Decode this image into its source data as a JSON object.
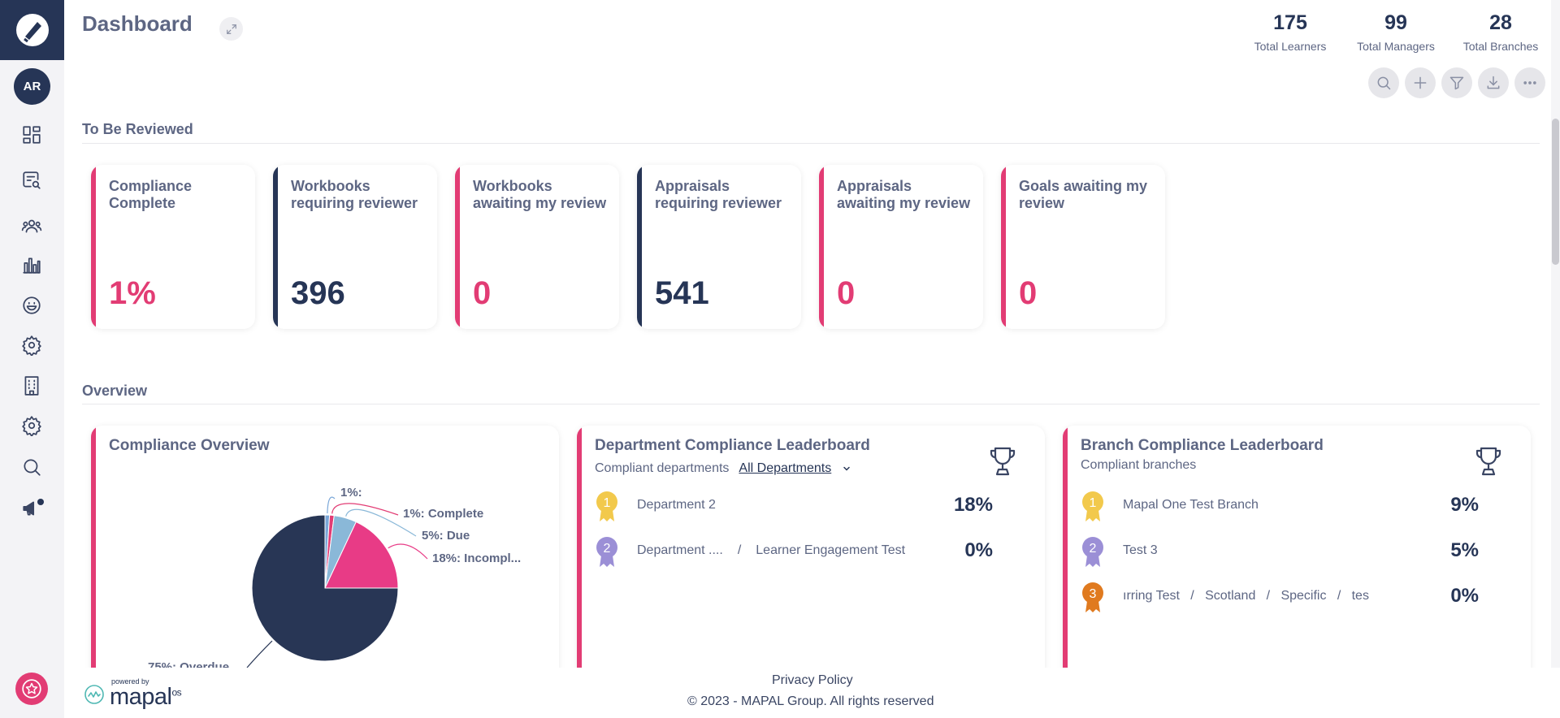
{
  "header": {
    "title": "Dashboard",
    "stats": [
      {
        "value": "175",
        "label": "Total Learners"
      },
      {
        "value": "99",
        "label": "Total Managers"
      },
      {
        "value": "28",
        "label": "Total Branches"
      }
    ]
  },
  "sidebar": {
    "avatar_initials": "AR",
    "items": [
      "dashboard-icon",
      "search-document-icon",
      "users-icon",
      "bar-chart-icon",
      "smiley-icon",
      "gear-icon",
      "building-icon",
      "gear-icon",
      "search-icon",
      "megaphone-icon"
    ]
  },
  "sections": {
    "review": "To Be Reviewed",
    "overview": "Overview"
  },
  "review_cards": [
    {
      "label": "Compliance Complete",
      "value": "1%",
      "color": "#e23c74"
    },
    {
      "label": "Workbooks requiring reviewer",
      "value": "396",
      "color": "#263556"
    },
    {
      "label": "Workbooks awaiting my review",
      "value": "0",
      "color": "#e23c74"
    },
    {
      "label": "Appraisals requiring reviewer",
      "value": "541",
      "color": "#263556"
    },
    {
      "label": "Appraisals awaiting my review",
      "value": "0",
      "color": "#e23c74"
    },
    {
      "label": "Goals awaiting my review",
      "value": "0",
      "color": "#e23c74"
    }
  ],
  "compliance_overview": {
    "title": "Compliance Overview",
    "slices": [
      {
        "label": "1%:",
        "value": 1,
        "color": "#7aa7d8"
      },
      {
        "label": "1%: Complete",
        "value": 1,
        "color": "#e23c74"
      },
      {
        "label": "5%: Due",
        "value": 5,
        "color": "#8ab8d8"
      },
      {
        "label": "18%: Incompl...",
        "value": 18,
        "color": "#e83b86"
      },
      {
        "label": "75%: Overdue",
        "value": 75,
        "color": "#283655"
      }
    ]
  },
  "chart_data": {
    "type": "pie",
    "title": "Compliance Overview",
    "categories": [
      "",
      "Complete",
      "Due",
      "Incompl...",
      "Overdue"
    ],
    "values": [
      1,
      1,
      5,
      18,
      75
    ]
  },
  "department_leaderboard": {
    "title": "Department Compliance Leaderboard",
    "subtitle": "Compliant departments",
    "filter": "All Departments",
    "rows": [
      {
        "rank": "1",
        "name": "Department 2",
        "extra": "",
        "pct": "18%"
      },
      {
        "rank": "2",
        "name": "Department ....",
        "extra": "Learner Engagement Test",
        "pct": "0%"
      }
    ]
  },
  "branch_leaderboard": {
    "title": "Branch Compliance Leaderboard",
    "subtitle": "Compliant branches",
    "rows": [
      {
        "rank": "1",
        "name": "Mapal One Test Branch",
        "pct": "9%"
      },
      {
        "rank": "2",
        "name": "Test 3",
        "pct": "5%"
      },
      {
        "rank": "3",
        "name": "ırring Test   /   Scotland   /   Specific   /   tes",
        "pct": "0%"
      }
    ]
  },
  "footer": {
    "powered_by": "powered by",
    "brand": "mapal",
    "brand_suffix": "os",
    "privacy": "Privacy Policy",
    "copyright": "© 2023 - MAPAL Group. All rights reserved"
  },
  "colors": {
    "navy": "#263556",
    "pink": "#e23c74",
    "gold": "#f2c94c",
    "purple": "#9b8fd6",
    "orange": "#e07a1f"
  }
}
